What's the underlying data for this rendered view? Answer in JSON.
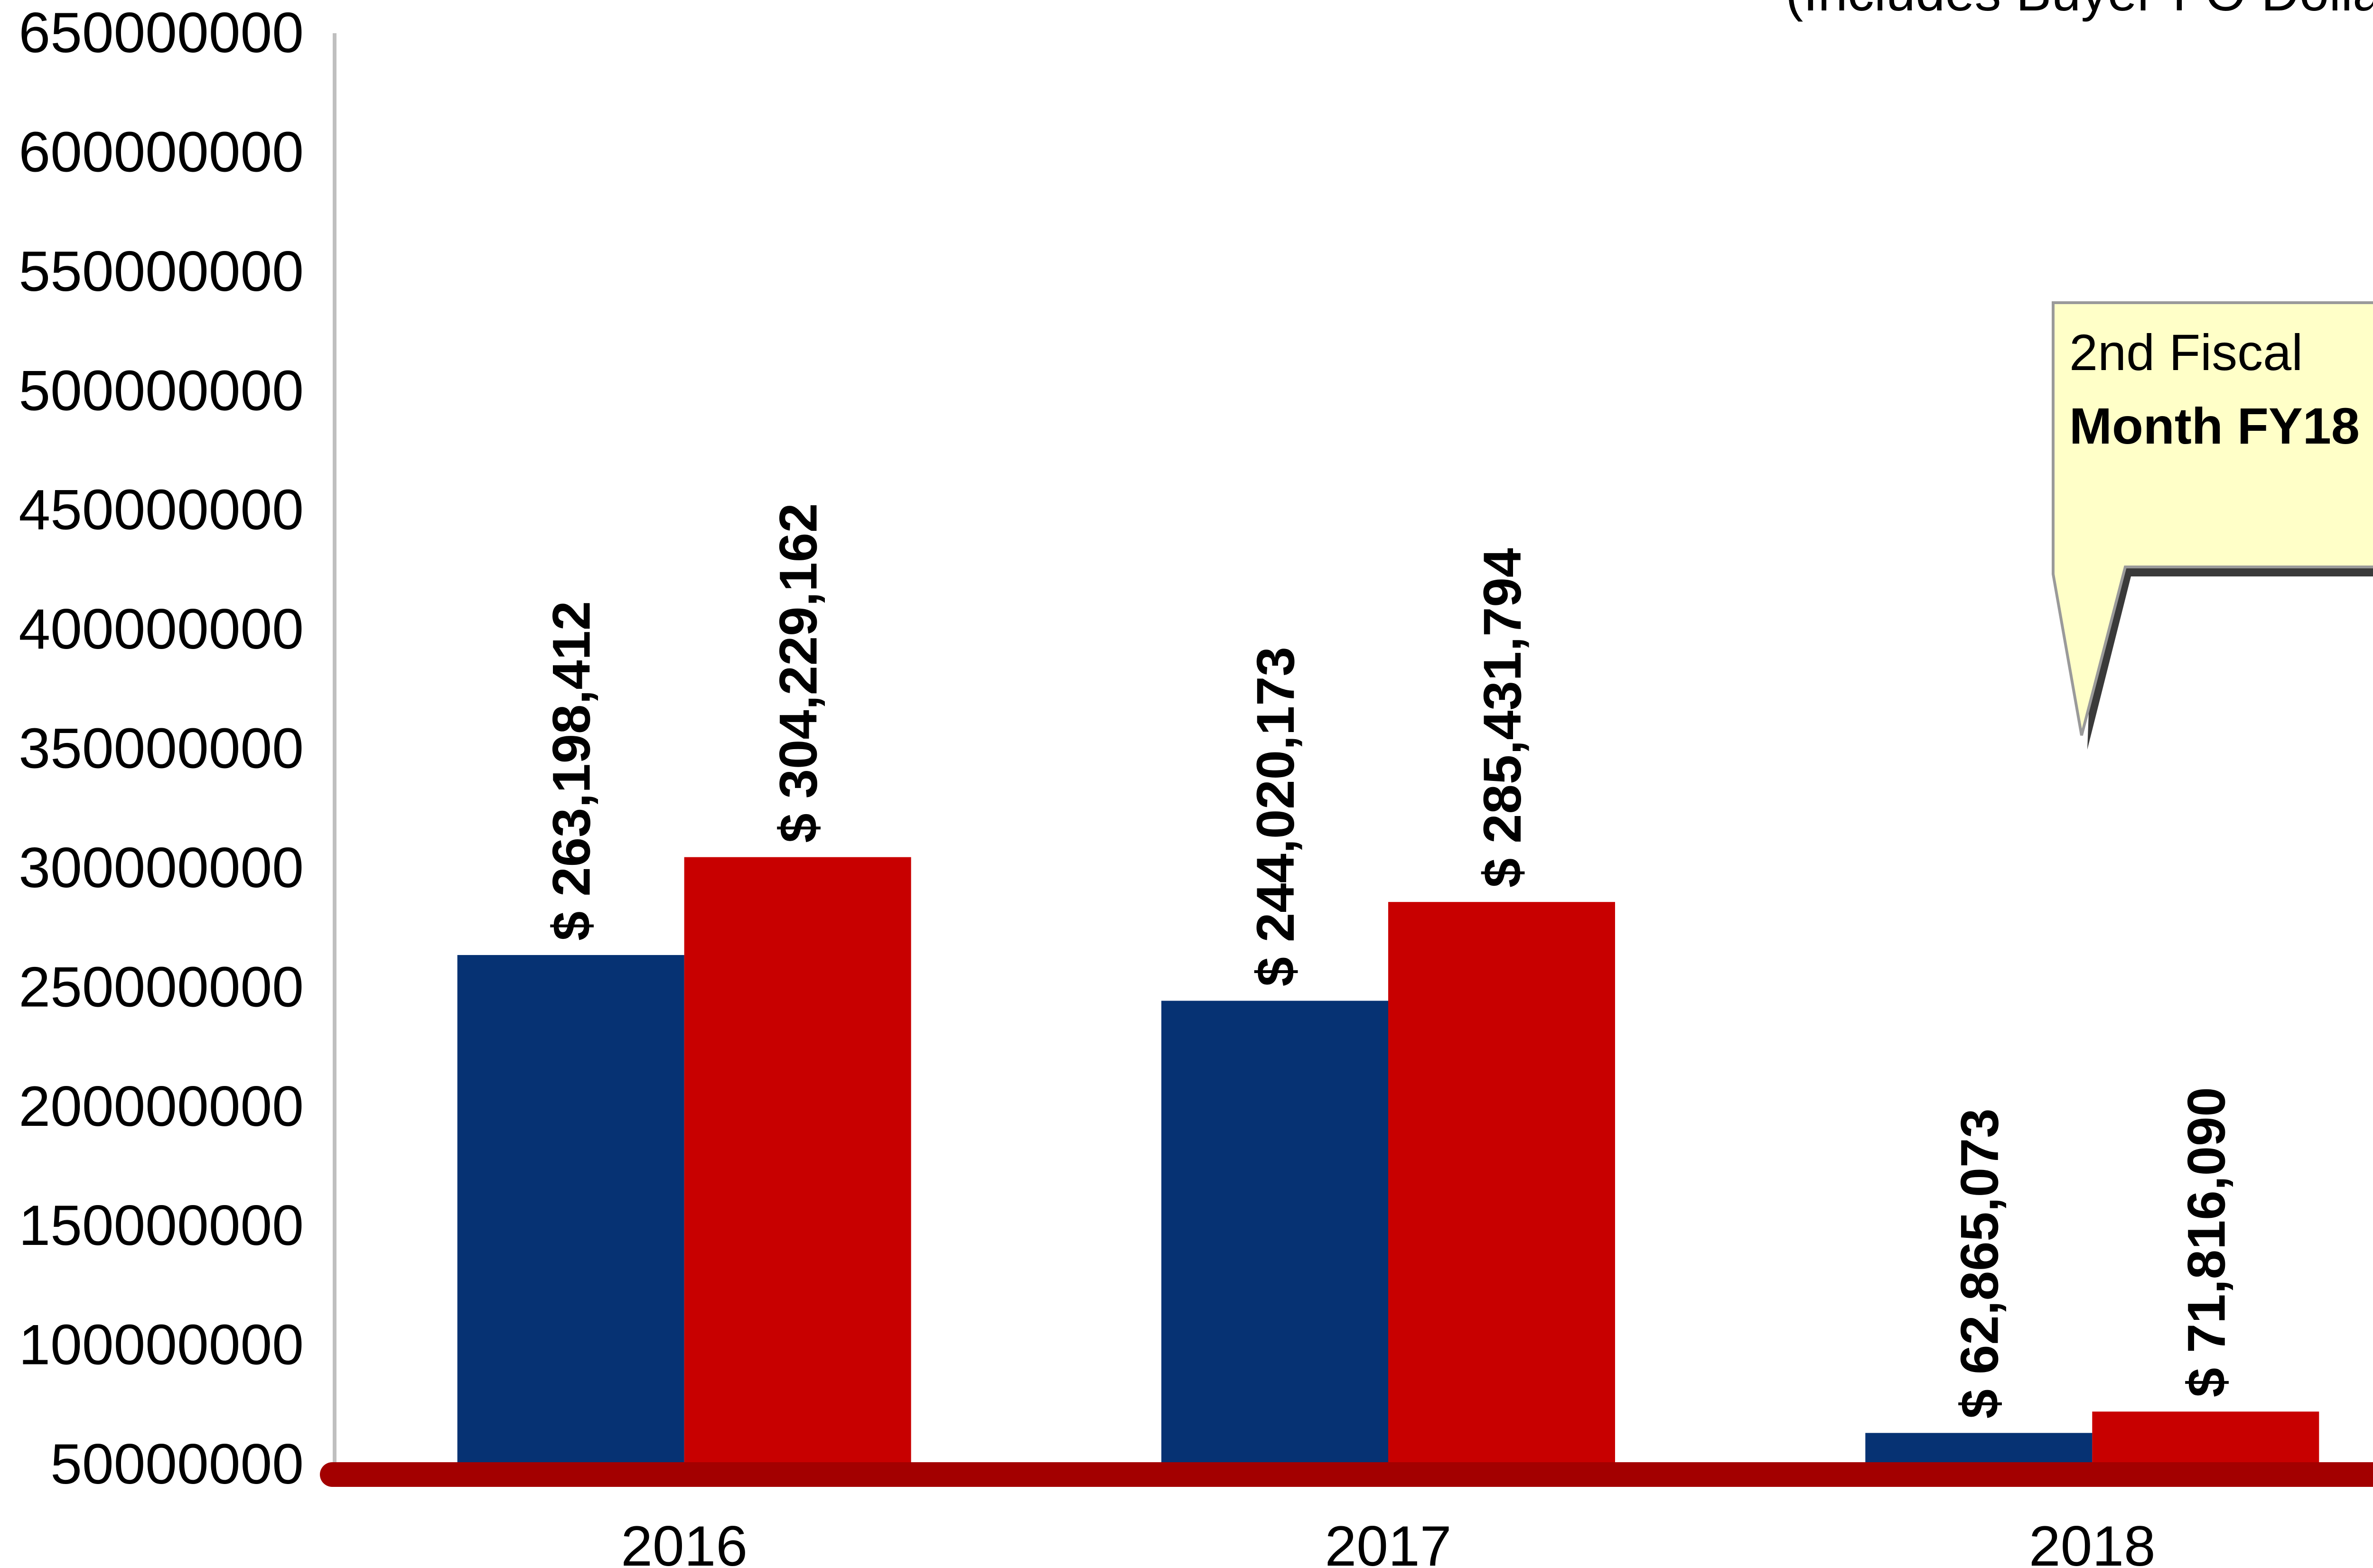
{
  "chart_data": {
    "type": "bar",
    "subtitle": "(Includes Buyer-FO Dollars)",
    "categories": [
      "2016",
      "2017",
      "2018"
    ],
    "series": [
      {
        "color": "#063273",
        "values": [
          263198412,
          244020173,
          62865073
        ],
        "labels": [
          "$ 263,198,412",
          "$ 244,020,173",
          "$ 62,865,073"
        ]
      },
      {
        "color": "#c80000",
        "values": [
          304229162,
          285431794,
          71816090
        ],
        "labels": [
          "$ 304,229,162",
          "$ 285,431,794",
          "$ 71,816,090"
        ]
      }
    ],
    "yticks": [
      "50000000",
      "100000000",
      "150000000",
      "200000000",
      "250000000",
      "300000000",
      "350000000",
      "400000000",
      "450000000",
      "500000000",
      "550000000",
      "600000000",
      "650000000"
    ],
    "ylim": [
      50000000,
      650000000
    ],
    "grid": false,
    "annotation": {
      "line1": "2nd Fiscal",
      "line2": "Month FY18",
      "fill": "#ffffc8"
    },
    "baseline_color": "#a30000",
    "axis_color": "#bfbfbf"
  }
}
